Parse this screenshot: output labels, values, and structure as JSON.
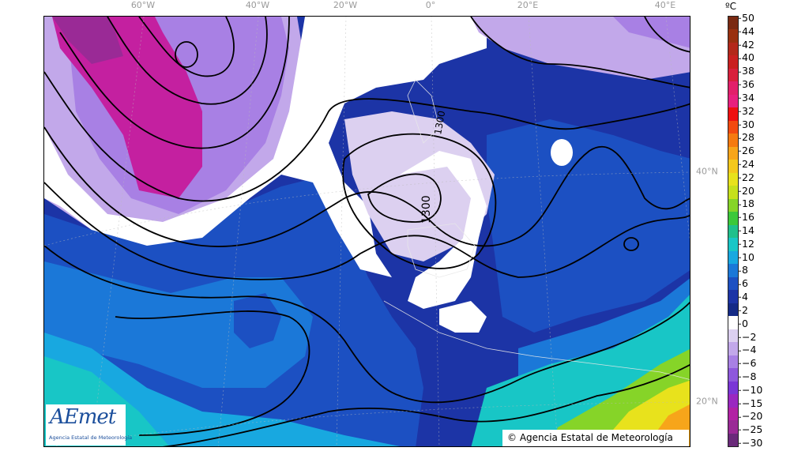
{
  "map": {
    "longitude_labels": [
      "60°W",
      "40°W",
      "20°W",
      "0°",
      "20°E",
      "40°E"
    ],
    "latitude_labels": [
      "40°N",
      "20°N"
    ],
    "contour_label": "1300",
    "contour_label_2": "1300"
  },
  "colorbar": {
    "unit": "ºC",
    "ticks": [
      "50",
      "44",
      "42",
      "40",
      "38",
      "36",
      "34",
      "32",
      "30",
      "28",
      "26",
      "24",
      "22",
      "20",
      "18",
      "16",
      "14",
      "12",
      "10",
      "8",
      "6",
      "4",
      "2",
      "0",
      "−2",
      "−4",
      "−6",
      "−8",
      "−10",
      "−15",
      "−20",
      "−25",
      "−30"
    ],
    "colors": [
      "#7a2a12",
      "#99300f",
      "#b3281a",
      "#c92020",
      "#d8203c",
      "#e2206a",
      "#e8207e",
      "#ef1010",
      "#f24a10",
      "#f57a10",
      "#f7a51a",
      "#f4c81c",
      "#e8e21c",
      "#c6e01c",
      "#86d428",
      "#3cc83a",
      "#1fc08c",
      "#18c6c6",
      "#18a8e0",
      "#1b78d8",
      "#1c50c2",
      "#1c34a6",
      "#142a86",
      "#ffffff",
      "#dcd0f0",
      "#c2a8ea",
      "#a880e4",
      "#8e58dc",
      "#7a36d6",
      "#9a28c0",
      "#b222a4",
      "#9a2a96",
      "#6a2a7a"
    ]
  },
  "logo": {
    "mark": "AEmet",
    "subtitle": "Agencia Estatal de Meteorología"
  },
  "credit": "© Agencia Estatal de Meteorología"
}
